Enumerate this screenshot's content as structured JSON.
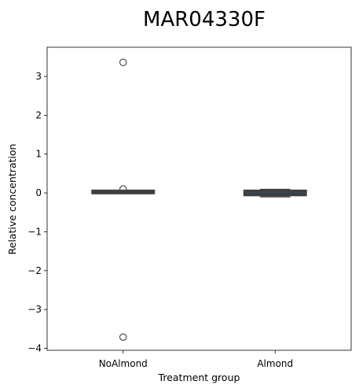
{
  "chart_data": {
    "type": "box",
    "title": "MAR04330F",
    "xlabel": "Treatment group",
    "ylabel": "Relative concentration",
    "categories": [
      "NoAlmond",
      "Almond"
    ],
    "ylim": [
      -4.05,
      3.75
    ],
    "yticks": [
      3,
      2,
      1,
      0,
      -1,
      -2,
      -3,
      -4
    ],
    "ytick_labels": [
      "3",
      "2",
      "1",
      "0",
      "−1",
      "−2",
      "−3",
      "−4"
    ],
    "grid": false,
    "boxes": [
      {
        "category": "NoAlmond",
        "whisker_low": -0.01,
        "q1": 0.0,
        "median": 0.02,
        "q3": 0.05,
        "whisker_high": 0.06,
        "outliers": [
          3.36,
          0.1,
          -3.71
        ]
      },
      {
        "category": "Almond",
        "whisker_low": -0.1,
        "q1": -0.05,
        "median": -0.01,
        "q3": 0.05,
        "whisker_high": 0.09,
        "outliers": []
      }
    ],
    "colors": {
      "box_fill": "#1f77b4",
      "line": "#3f3f3f"
    }
  }
}
